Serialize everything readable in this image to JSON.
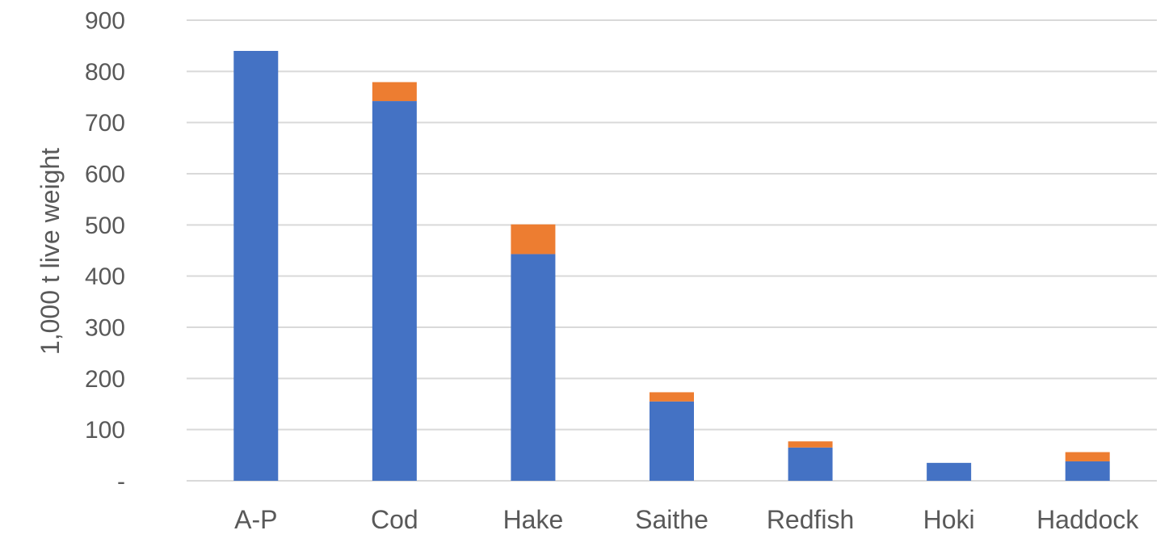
{
  "chart_data": {
    "type": "bar",
    "stacked": true,
    "title": "",
    "xlabel": "",
    "ylabel": "1,000 t live weight",
    "categories": [
      "A-P",
      "Cod",
      "Hake",
      "Saithe",
      "Redfish",
      "Hoki",
      "Haddock"
    ],
    "series": [
      {
        "color": "#4472C4",
        "values": [
          840,
          742,
          443,
          155,
          65,
          35,
          38
        ]
      },
      {
        "color": "#ED7D31",
        "values": [
          0,
          37,
          58,
          18,
          12,
          0,
          18
        ]
      }
    ],
    "ylim": [
      0,
      900
    ],
    "yticks": [
      {
        "value": 0,
        "label": "-"
      },
      {
        "value": 100,
        "label": "100"
      },
      {
        "value": 200,
        "label": "200"
      },
      {
        "value": 300,
        "label": "300"
      },
      {
        "value": 400,
        "label": "400"
      },
      {
        "value": 500,
        "label": "500"
      },
      {
        "value": 600,
        "label": "600"
      },
      {
        "value": 700,
        "label": "700"
      },
      {
        "value": 800,
        "label": "800"
      },
      {
        "value": 900,
        "label": "900"
      }
    ],
    "grid": true,
    "legend": "none"
  }
}
